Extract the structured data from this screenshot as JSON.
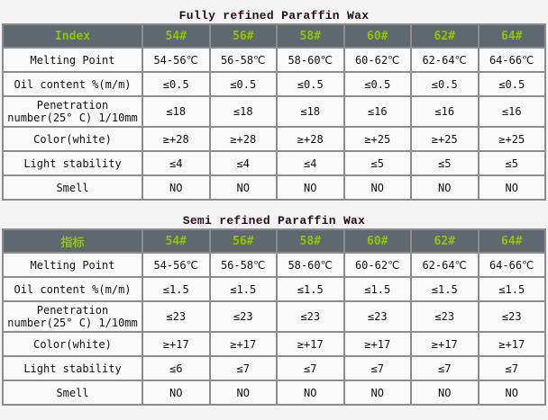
{
  "colors": {
    "header_bg": "#5f6870",
    "header_text": "#8fc400",
    "title": "#2a0a1a"
  },
  "tables": [
    {
      "title": "Fully refined Paraffin Wax",
      "headers": [
        "Index",
        "54#",
        "56#",
        "58#",
        "60#",
        "62#",
        "64#"
      ],
      "rows": [
        {
          "label": "Melting Point",
          "values": [
            "54-56℃",
            "56-58℃",
            "58-60℃",
            "60-62℃",
            "62-64℃",
            "64-66℃"
          ]
        },
        {
          "label": "Oil content %(m/m)",
          "values": [
            "≤0.5",
            "≤0.5",
            "≤0.5",
            "≤0.5",
            "≤0.5",
            "≤0.5"
          ]
        },
        {
          "label": "Penetration number(25° C) 1/10mm",
          "values": [
            "≤18",
            "≤18",
            "≤18",
            "≤16",
            "≤16",
            "≤16"
          ]
        },
        {
          "label": "Color(white)",
          "values": [
            "≥+28",
            "≥+28",
            "≥+28",
            "≥+25",
            "≥+25",
            "≥+25"
          ]
        },
        {
          "label": "Light stability",
          "values": [
            "≤4",
            "≤4",
            "≤4",
            "≤5",
            "≤5",
            "≤5"
          ]
        },
        {
          "label": "Smell",
          "values": [
            "NO",
            "NO",
            "NO",
            "NO",
            "NO",
            "NO"
          ]
        }
      ]
    },
    {
      "title": "Semi refined Paraffin Wax",
      "headers": [
        "指标",
        "54#",
        "56#",
        "58#",
        "60#",
        "62#",
        "64#"
      ],
      "rows": [
        {
          "label": "Melting Point",
          "values": [
            "54-56℃",
            "56-58℃",
            "58-60℃",
            "60-62℃",
            "62-64℃",
            "64-66℃"
          ]
        },
        {
          "label": "Oil content %(m/m)",
          "values": [
            "≤1.5",
            "≤1.5",
            "≤1.5",
            "≤1.5",
            "≤1.5",
            "≤1.5"
          ]
        },
        {
          "label": "Penetration number(25° C) 1/10mm",
          "values": [
            "≤23",
            "≤23",
            "≤23",
            "≤23",
            "≤23",
            "≤23"
          ]
        },
        {
          "label": "Color(white)",
          "values": [
            "≥+17",
            "≥+17",
            "≥+17",
            "≥+17",
            "≥+17",
            "≥+17"
          ]
        },
        {
          "label": "Light stability",
          "values": [
            "≤6",
            "≤7",
            "≤7",
            "≤7",
            "≤7",
            "≤7"
          ]
        },
        {
          "label": "Smell",
          "values": [
            "NO",
            "NO",
            "NO",
            "NO",
            "NO",
            "NO"
          ]
        }
      ]
    }
  ]
}
